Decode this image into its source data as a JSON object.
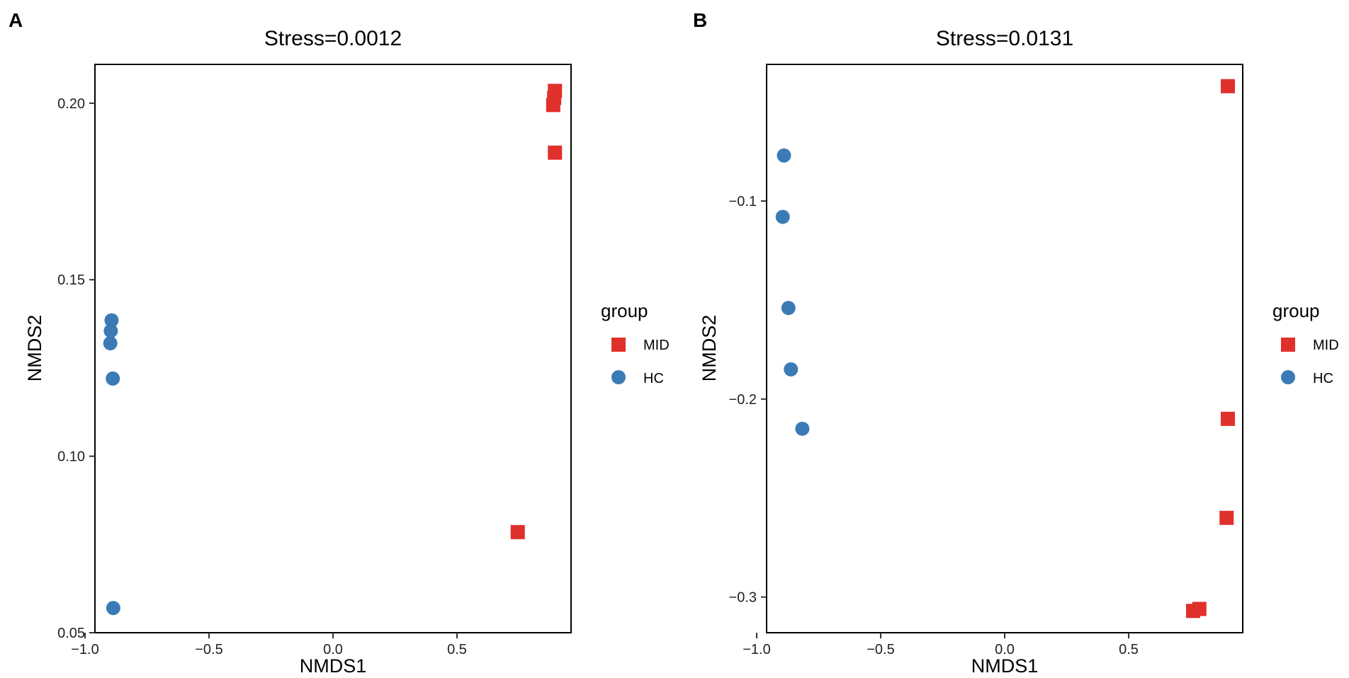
{
  "legend": {
    "title": "group",
    "entries": [
      {
        "label": "MID",
        "shape": "square",
        "color": "#E0302C"
      },
      {
        "label": "HC",
        "shape": "circle",
        "color": "#3A7BB5"
      }
    ]
  },
  "chart_data": [
    {
      "panel": "A",
      "type": "scatter",
      "title": "Stress=0.0012",
      "xlabel": "NMDS1",
      "ylabel": "NMDS2",
      "xlim": [
        -0.96,
        0.96
      ],
      "ylim": [
        0.05,
        0.211
      ],
      "xticks": [
        -1.0,
        -0.5,
        0.0,
        0.5
      ],
      "xtick_labels": [
        "−1.0",
        "−0.5",
        "0.0",
        "0.5"
      ],
      "yticks": [
        0.05,
        0.1,
        0.15,
        0.2
      ],
      "ytick_labels": [
        "0.05",
        "0.10",
        "0.15",
        "0.20"
      ],
      "series": [
        {
          "name": "MID",
          "x": [
            0.895,
            0.892,
            0.888,
            0.895,
            0.745
          ],
          "y": [
            0.2035,
            0.2015,
            0.1995,
            0.186,
            0.0785
          ]
        },
        {
          "name": "HC",
          "x": [
            -0.893,
            -0.896,
            -0.898,
            -0.888,
            -0.886
          ],
          "y": [
            0.1385,
            0.1355,
            0.132,
            0.122,
            0.057
          ]
        }
      ]
    },
    {
      "panel": "B",
      "type": "scatter",
      "title": "Stress=0.0131",
      "xlabel": "NMDS1",
      "ylabel": "NMDS2",
      "xlim": [
        -0.96,
        0.96
      ],
      "ylim": [
        -0.318,
        -0.031
      ],
      "xticks": [
        -1.0,
        -0.5,
        0.0,
        0.5
      ],
      "xtick_labels": [
        "−1.0",
        "−0.5",
        "0.0",
        "0.5"
      ],
      "yticks": [
        -0.3,
        -0.2,
        -0.1
      ],
      "ytick_labels": [
        "−0.3",
        "−0.2",
        "−0.1"
      ],
      "series": [
        {
          "name": "MID",
          "x": [
            0.9,
            0.9,
            0.895,
            0.785,
            0.76
          ],
          "y": [
            -0.042,
            -0.21,
            -0.26,
            -0.306,
            -0.307
          ]
        },
        {
          "name": "HC",
          "x": [
            -0.89,
            -0.895,
            -0.872,
            -0.862,
            -0.816
          ],
          "y": [
            -0.077,
            -0.108,
            -0.154,
            -0.185,
            -0.215
          ]
        }
      ]
    }
  ]
}
